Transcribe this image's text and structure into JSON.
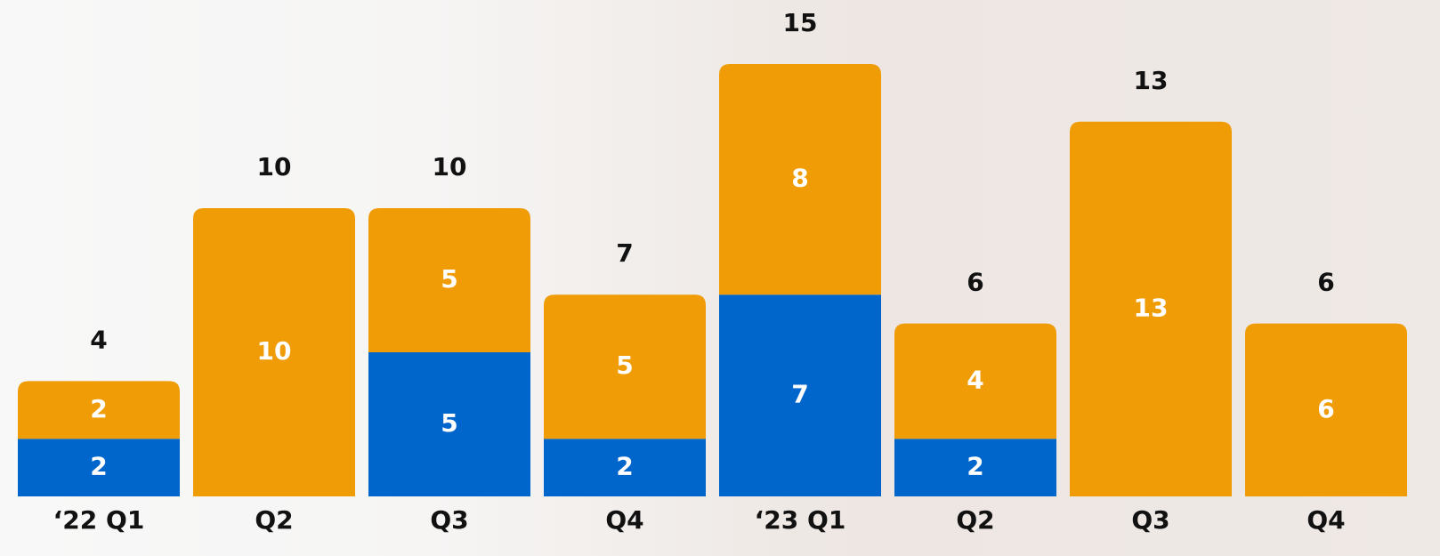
{
  "chart_data": {
    "type": "stacked-bar",
    "categories": [
      "‘22 Q1",
      "Q2",
      "Q3",
      "Q4",
      "‘23 Q1",
      "Q2",
      "Q3",
      "Q4"
    ],
    "series": [
      {
        "color": "#0066cc",
        "values": [
          2,
          null,
          5,
          2,
          7,
          2,
          null,
          null
        ]
      },
      {
        "color": "#f09c07",
        "values": [
          2,
          10,
          5,
          5,
          8,
          4,
          13,
          6
        ]
      }
    ],
    "totals": [
      4,
      10,
      10,
      7,
      15,
      6,
      13,
      6
    ],
    "ylim": [
      0,
      15
    ]
  }
}
